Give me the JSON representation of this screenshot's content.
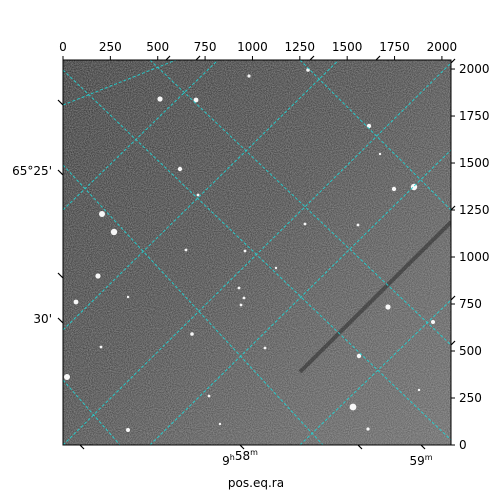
{
  "chart_data": {
    "type": "image",
    "xlabel": "pos.eq.ra",
    "pixel_axes": {
      "x_range": [
        0,
        2048
      ],
      "y_range": [
        0,
        2048
      ],
      "top_ticks": [
        0,
        250,
        500,
        750,
        1000,
        1250,
        1500,
        1750,
        2000
      ],
      "right_ticks": [
        0,
        250,
        500,
        750,
        1000,
        1250,
        1500,
        1750,
        2000
      ]
    },
    "world_axes": {
      "bottom_labels": [
        "9h58m",
        "59m"
      ],
      "left_labels": [
        "65°25'",
        "30'"
      ]
    },
    "colors": {
      "grid": "#22d3d3",
      "background_gray": "#555555",
      "stars": "#ffffff"
    },
    "features": {
      "grid_lines": "dashed cyan coordinate grid",
      "streak": "faint diagonal satellite trail, lower right"
    }
  }
}
